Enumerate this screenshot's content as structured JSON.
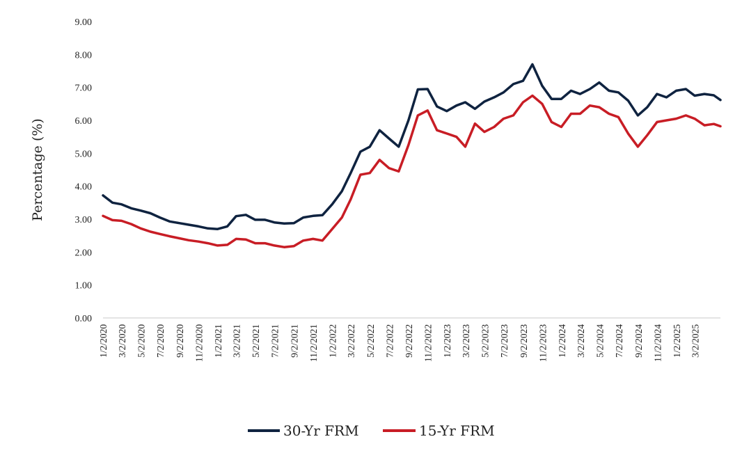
{
  "chart_data": {
    "type": "line",
    "title": "",
    "xlabel": "",
    "ylabel": "Percentage (%)",
    "ylim": [
      0,
      9
    ],
    "yticks": [
      "0.00",
      "1.00",
      "2.00",
      "3.00",
      "4.00",
      "5.00",
      "6.00",
      "7.00",
      "8.00",
      "9.00"
    ],
    "xlim": [
      "2020-01-02",
      "2025-05-22"
    ],
    "xticks": [
      "1/2/2020",
      "3/2/2020",
      "5/2/2020",
      "7/2/2020",
      "9/2/2020",
      "11/2/2020",
      "1/2/2021",
      "3/2/2021",
      "5/2/2021",
      "7/2/2021",
      "9/2/2021",
      "11/2/2021",
      "1/2/2022",
      "3/2/2022",
      "5/2/2022",
      "7/2/2022",
      "9/2/2022",
      "11/2/2022",
      "1/2/2023",
      "3/2/2023",
      "5/2/2023",
      "7/2/2023",
      "9/2/2023",
      "11/2/2023",
      "1/2/2024",
      "3/2/2024",
      "5/2/2024",
      "7/2/2024",
      "9/2/2024",
      "11/2/2024",
      "1/2/2025",
      "3/2/2025"
    ],
    "grid": false,
    "legend_position": "bottom",
    "x": [
      "2020-01-02",
      "2020-02-01",
      "2020-03-01",
      "2020-04-01",
      "2020-05-01",
      "2020-06-01",
      "2020-07-01",
      "2020-08-01",
      "2020-09-01",
      "2020-10-01",
      "2020-11-01",
      "2020-12-01",
      "2021-01-01",
      "2021-02-01",
      "2021-03-01",
      "2021-04-01",
      "2021-05-01",
      "2021-06-01",
      "2021-07-01",
      "2021-08-01",
      "2021-09-01",
      "2021-10-01",
      "2021-11-01",
      "2021-12-01",
      "2022-01-01",
      "2022-02-01",
      "2022-03-01",
      "2022-04-01",
      "2022-05-01",
      "2022-06-01",
      "2022-07-01",
      "2022-08-01",
      "2022-09-01",
      "2022-10-01",
      "2022-11-01",
      "2022-12-01",
      "2023-01-01",
      "2023-02-01",
      "2023-03-01",
      "2023-04-01",
      "2023-05-01",
      "2023-06-01",
      "2023-07-01",
      "2023-08-01",
      "2023-09-01",
      "2023-10-01",
      "2023-11-01",
      "2023-12-01",
      "2024-01-01",
      "2024-02-01",
      "2024-03-01",
      "2024-04-01",
      "2024-05-01",
      "2024-06-01",
      "2024-07-01",
      "2024-08-01",
      "2024-09-01",
      "2024-10-01",
      "2024-11-01",
      "2024-12-01",
      "2025-01-01",
      "2025-02-01",
      "2025-03-01",
      "2025-04-01",
      "2025-05-01",
      "2025-05-22"
    ],
    "series": [
      {
        "name": "30-Yr FRM",
        "color": "#0f2340",
        "values": [
          3.72,
          3.5,
          3.45,
          3.33,
          3.26,
          3.18,
          3.05,
          2.93,
          2.88,
          2.83,
          2.78,
          2.72,
          2.7,
          2.78,
          3.09,
          3.13,
          2.98,
          2.98,
          2.9,
          2.87,
          2.88,
          3.05,
          3.1,
          3.12,
          3.45,
          3.85,
          4.4,
          5.05,
          5.2,
          5.7,
          5.45,
          5.2,
          6.0,
          6.94,
          6.95,
          6.42,
          6.28,
          6.45,
          6.55,
          6.35,
          6.57,
          6.7,
          6.85,
          7.1,
          7.2,
          7.7,
          7.05,
          6.65,
          6.65,
          6.9,
          6.8,
          6.95,
          7.15,
          6.9,
          6.85,
          6.6,
          6.15,
          6.4,
          6.8,
          6.7,
          6.9,
          6.95,
          6.75,
          6.8,
          6.76,
          6.62
        ]
      },
      {
        "name": "15-Yr FRM",
        "color": "#c81d25",
        "values": [
          3.1,
          2.97,
          2.95,
          2.85,
          2.72,
          2.62,
          2.55,
          2.48,
          2.42,
          2.36,
          2.32,
          2.27,
          2.2,
          2.22,
          2.4,
          2.38,
          2.27,
          2.27,
          2.2,
          2.15,
          2.18,
          2.35,
          2.4,
          2.35,
          2.7,
          3.05,
          3.6,
          4.35,
          4.4,
          4.8,
          4.55,
          4.45,
          5.25,
          6.15,
          6.3,
          5.7,
          5.6,
          5.5,
          5.2,
          5.9,
          5.65,
          5.8,
          6.05,
          6.15,
          6.55,
          6.75,
          6.5,
          5.95,
          5.8,
          6.2,
          6.2,
          6.45,
          6.4,
          6.2,
          6.1,
          5.6,
          5.2,
          5.55,
          5.95,
          6.0,
          6.05,
          6.15,
          6.05,
          5.85,
          5.89,
          5.82
        ]
      }
    ]
  }
}
